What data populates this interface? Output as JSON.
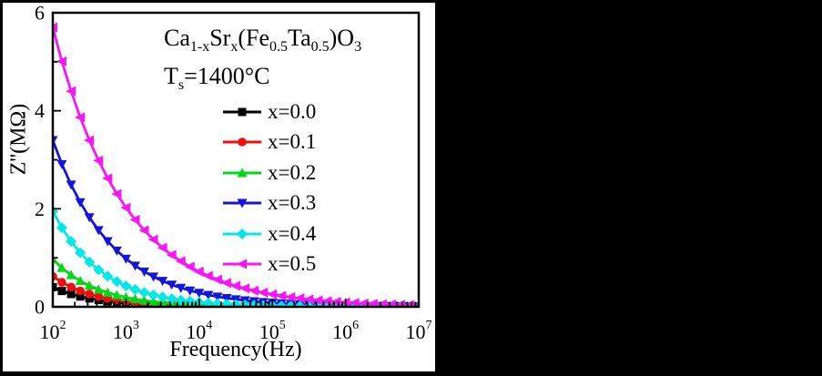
{
  "figure": {
    "background": "#000000",
    "panel_background": "#ffffff",
    "text_color": "#000000"
  },
  "title": {
    "formula_segments": [
      [
        "t",
        "Ca"
      ],
      [
        "sub",
        "1-x"
      ],
      [
        "t",
        "Sr"
      ],
      [
        "sub",
        "x"
      ],
      [
        "t",
        "(Fe"
      ],
      [
        "sub",
        "0.5"
      ],
      [
        "t",
        "Ta"
      ],
      [
        "sub",
        "0.5"
      ],
      [
        "t",
        ")O"
      ],
      [
        "sub",
        "3"
      ]
    ],
    "temperature_segments": [
      [
        "t",
        "T"
      ],
      [
        "sub",
        "s"
      ],
      [
        "t",
        "=1400°C"
      ]
    ]
  },
  "axes": {
    "x": {
      "label": "Frequency(Hz)",
      "scale": "log",
      "tick_exponents": [
        2,
        3,
        4,
        5,
        6,
        7
      ],
      "minor_multiples": [
        2,
        3,
        4,
        5,
        6,
        7,
        8,
        9
      ]
    },
    "y": {
      "label": "Z''(MΩ)",
      "min": 0,
      "max": 6,
      "major_ticks": [
        0,
        2,
        4,
        6
      ],
      "minor_ticks": [
        1,
        3,
        5
      ]
    }
  },
  "chart_data": {
    "type": "line",
    "title": "Ca1-xSrx(Fe0.5Ta0.5)O3, Ts=1400°C",
    "xlabel": "Frequency(Hz)",
    "ylabel": "Z''(MΩ)",
    "x_scale": "log",
    "xlim": [
      100,
      10000000
    ],
    "ylim": [
      0,
      6
    ],
    "grid": false,
    "legend_position": "inside-upper-right",
    "frequencies_hz": [
      100,
      133,
      178,
      237,
      316,
      422,
      562,
      750,
      1000,
      1334,
      1778,
      2371,
      3162,
      4217,
      5623,
      7499,
      10000,
      13335,
      17783,
      23714,
      31623,
      42170,
      56234,
      74989,
      100000,
      133352,
      177828,
      237137,
      316228,
      421697,
      562341,
      749894,
      1000000,
      1333521,
      1778279,
      2371374,
      3162278,
      4216965,
      5623413,
      7498942,
      10000000
    ],
    "series": [
      {
        "label": "x=0.0",
        "color": "#000000",
        "marker": "square",
        "values": [
          0.4,
          0.322,
          0.26,
          0.209,
          0.169,
          0.136,
          0.11,
          0.088,
          0.071,
          0.057,
          0.046,
          0.037,
          0.03,
          0.024,
          0.019,
          0.016,
          0.013,
          0.01,
          0.008,
          0.007,
          0.005,
          0.004,
          0.004,
          0.003,
          0.002,
          0.002,
          0.002,
          0.001,
          0.001,
          0.001,
          0.001,
          0.001,
          0.0,
          0.0,
          0.0,
          0.0,
          0.0,
          0.0,
          0.0,
          0.0,
          0.0
        ]
      },
      {
        "label": "x=0.1",
        "color": "#ef0f0f",
        "marker": "circle",
        "values": [
          0.62,
          0.5,
          0.403,
          0.325,
          0.262,
          0.211,
          0.17,
          0.137,
          0.11,
          0.089,
          0.072,
          0.058,
          0.047,
          0.038,
          0.03,
          0.024,
          0.02,
          0.016,
          0.013,
          0.01,
          0.008,
          0.007,
          0.006,
          0.004,
          0.004,
          0.003,
          0.002,
          0.002,
          0.002,
          0.001,
          0.001,
          0.001,
          0.001,
          0.001,
          0.0,
          0.0,
          0.0,
          0.0,
          0.0,
          0.0,
          0.0
        ]
      },
      {
        "label": "x=0.2",
        "color": "#00d914",
        "marker": "triangle-up",
        "values": [
          0.97,
          0.793,
          0.648,
          0.53,
          0.433,
          0.354,
          0.29,
          0.237,
          0.194,
          0.158,
          0.129,
          0.106,
          0.086,
          0.071,
          0.058,
          0.047,
          0.039,
          0.032,
          0.026,
          0.021,
          0.017,
          0.014,
          0.012,
          0.01,
          0.008,
          0.007,
          0.005,
          0.004,
          0.004,
          0.003,
          0.002,
          0.002,
          0.002,
          0.001,
          0.001,
          0.001,
          0.001,
          0.001,
          0.0,
          0.0,
          0.0
        ]
      },
      {
        "label": "x=0.3",
        "color": "#1414dc",
        "marker": "triangle-down",
        "values": [
          3.4,
          2.91,
          2.491,
          2.132,
          1.825,
          1.562,
          1.337,
          1.145,
          0.98,
          0.839,
          0.718,
          0.615,
          0.526,
          0.45,
          0.386,
          0.33,
          0.283,
          0.242,
          0.207,
          0.177,
          0.152,
          0.13,
          0.111,
          0.095,
          0.082,
          0.07,
          0.06,
          0.051,
          0.044,
          0.038,
          0.032,
          0.028,
          0.024,
          0.02,
          0.017,
          0.015,
          0.013,
          0.011,
          0.009,
          0.008,
          0.007
        ]
      },
      {
        "label": "x=0.4",
        "color": "#00e8e8",
        "marker": "diamond",
        "values": [
          1.95,
          1.613,
          1.334,
          1.103,
          0.912,
          0.754,
          0.624,
          0.516,
          0.427,
          0.353,
          0.292,
          0.241,
          0.2,
          0.165,
          0.137,
          0.113,
          0.093,
          0.077,
          0.064,
          0.053,
          0.044,
          0.036,
          0.03,
          0.025,
          0.02,
          0.017,
          0.014,
          0.012,
          0.01,
          0.008,
          0.007,
          0.006,
          0.005,
          0.004,
          0.003,
          0.003,
          0.002,
          0.002,
          0.002,
          0.001,
          0.001
        ]
      },
      {
        "label": "x=0.5",
        "color": "#fa14fa",
        "marker": "triangle-left",
        "values": [
          5.7,
          5.008,
          4.4,
          3.866,
          3.396,
          2.984,
          2.621,
          2.303,
          2.023,
          1.777,
          1.561,
          1.372,
          1.205,
          1.059,
          0.93,
          0.817,
          0.718,
          0.631,
          0.554,
          0.487,
          0.428,
          0.376,
          0.33,
          0.29,
          0.255,
          0.224,
          0.197,
          0.173,
          0.152,
          0.133,
          0.117,
          0.103,
          0.09,
          0.079,
          0.07,
          0.061,
          0.054,
          0.047,
          0.042,
          0.037,
          0.032
        ]
      }
    ]
  }
}
